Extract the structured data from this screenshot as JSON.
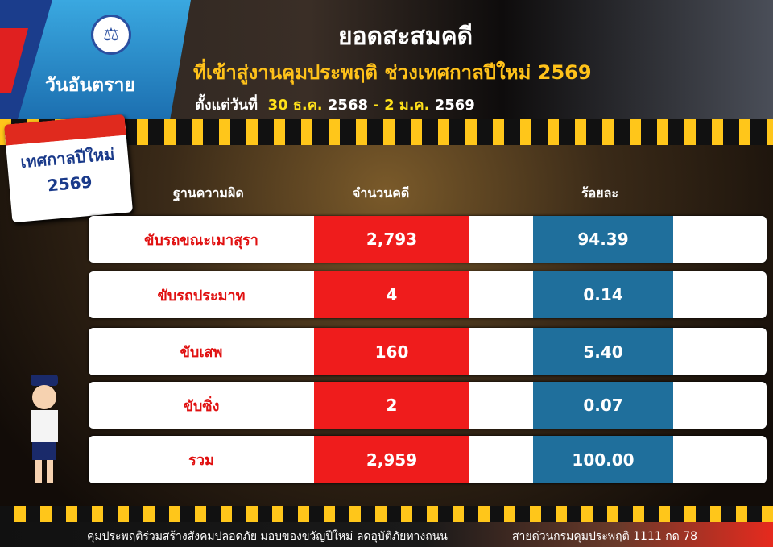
{
  "header": {
    "brand": "วันอันตราย",
    "title": "ยอดสะสมคดี",
    "subtitle": "ที่เข้าสู่งานคุมประพฤติ ช่วงเทศกาลปีใหม่ 2569",
    "date_prefix": "ตั้งแต่วันที่",
    "date_start": "30 ธ.ค.",
    "date_start_year": "2568",
    "date_sep": "-",
    "date_end": "2 ม.ค.",
    "date_end_year": "2569"
  },
  "calendar": {
    "line1": "เทศกาลปีใหม่",
    "line2": "2569"
  },
  "table": {
    "columns": [
      "ฐานความผิด",
      "จำนวนคดี",
      "ร้อยละ"
    ],
    "rows": [
      {
        "offense": "ขับรถขณะเมาสุรา",
        "cases": "2,793",
        "percent": "94.39"
      },
      {
        "offense": "ขับรถประมาท",
        "cases": "4",
        "percent": "0.14"
      },
      {
        "offense": "ขับเสพ",
        "cases": "160",
        "percent": "5.40"
      },
      {
        "offense": "ขับซิ่ง",
        "cases": "2",
        "percent": "0.07"
      },
      {
        "offense": "รวม",
        "cases": "2,959",
        "percent": "100.00"
      }
    ]
  },
  "footer": {
    "slogan": "คุมประพฤติร่วมสร้างสังคมปลอดภัย มอบของขวัญปีใหม่ ลดอุบัติภัยทางถนน",
    "hotline": "สายด่วนกรมคุมประพฤติ 1111 กด 78"
  },
  "colors": {
    "count_cell": "#ef1c1c",
    "percent_cell": "#1f6f9c",
    "accent": "#ffc21a"
  }
}
